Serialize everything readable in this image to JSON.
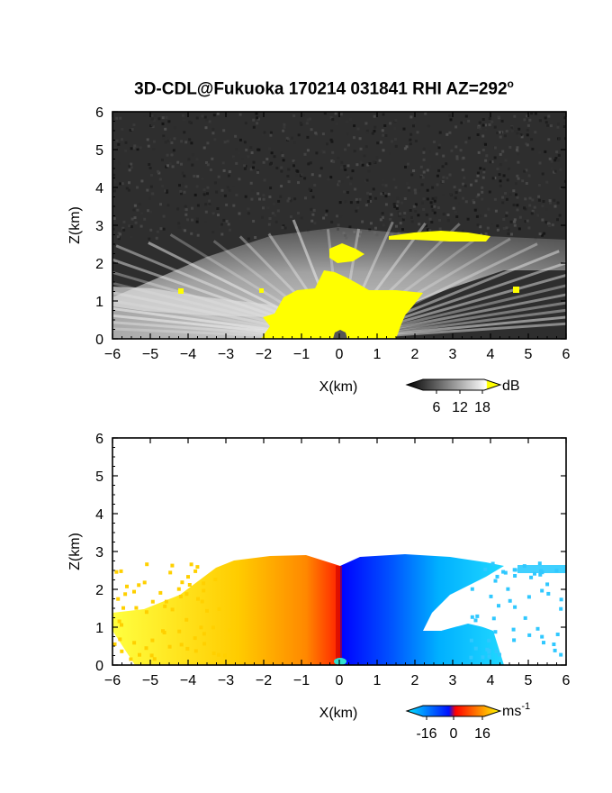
{
  "title": {
    "main": "3D-CDL@Fukuoka 170214 031841 RHI AZ=292",
    "degree_symbol": "o"
  },
  "chart_data": [
    {
      "type": "heatmap",
      "quantity": "reflectivity",
      "xlabel": "X(km)",
      "ylabel": "Z(km)",
      "xlim": [
        -6,
        6
      ],
      "ylim": [
        0,
        6
      ],
      "x_ticks": [
        "-6",
        "-5",
        "-4",
        "-3",
        "-2",
        "-1",
        "0",
        "1",
        "2",
        "3",
        "4",
        "5",
        "6"
      ],
      "y_ticks": [
        "0",
        "1",
        "2",
        "3",
        "4",
        "5",
        "6"
      ],
      "colorbar": {
        "unit": "dB",
        "ticks": [
          "6",
          "12",
          "18"
        ],
        "range": [
          0,
          21
        ],
        "colors": [
          "#000000",
          "#ffffff",
          "#ffff00"
        ]
      }
    },
    {
      "type": "heatmap",
      "quantity": "doppler velocity",
      "xlabel": "X(km)",
      "ylabel": "Z(km)",
      "xlim": [
        -6,
        6
      ],
      "ylim": [
        0,
        6
      ],
      "x_ticks": [
        "-6",
        "-5",
        "-4",
        "-3",
        "-2",
        "-1",
        "0",
        "1",
        "2",
        "3",
        "4",
        "5",
        "6"
      ],
      "y_ticks": [
        "0",
        "1",
        "2",
        "3",
        "4",
        "5",
        "6"
      ],
      "colorbar": {
        "unit": "ms",
        "unit_exponent": "-1",
        "ticks": [
          "-16",
          "0",
          "16"
        ],
        "range": [
          -20,
          20
        ],
        "colors": [
          "#00ffff",
          "#0000ff",
          "#ff0000",
          "#ffff00"
        ]
      }
    }
  ]
}
